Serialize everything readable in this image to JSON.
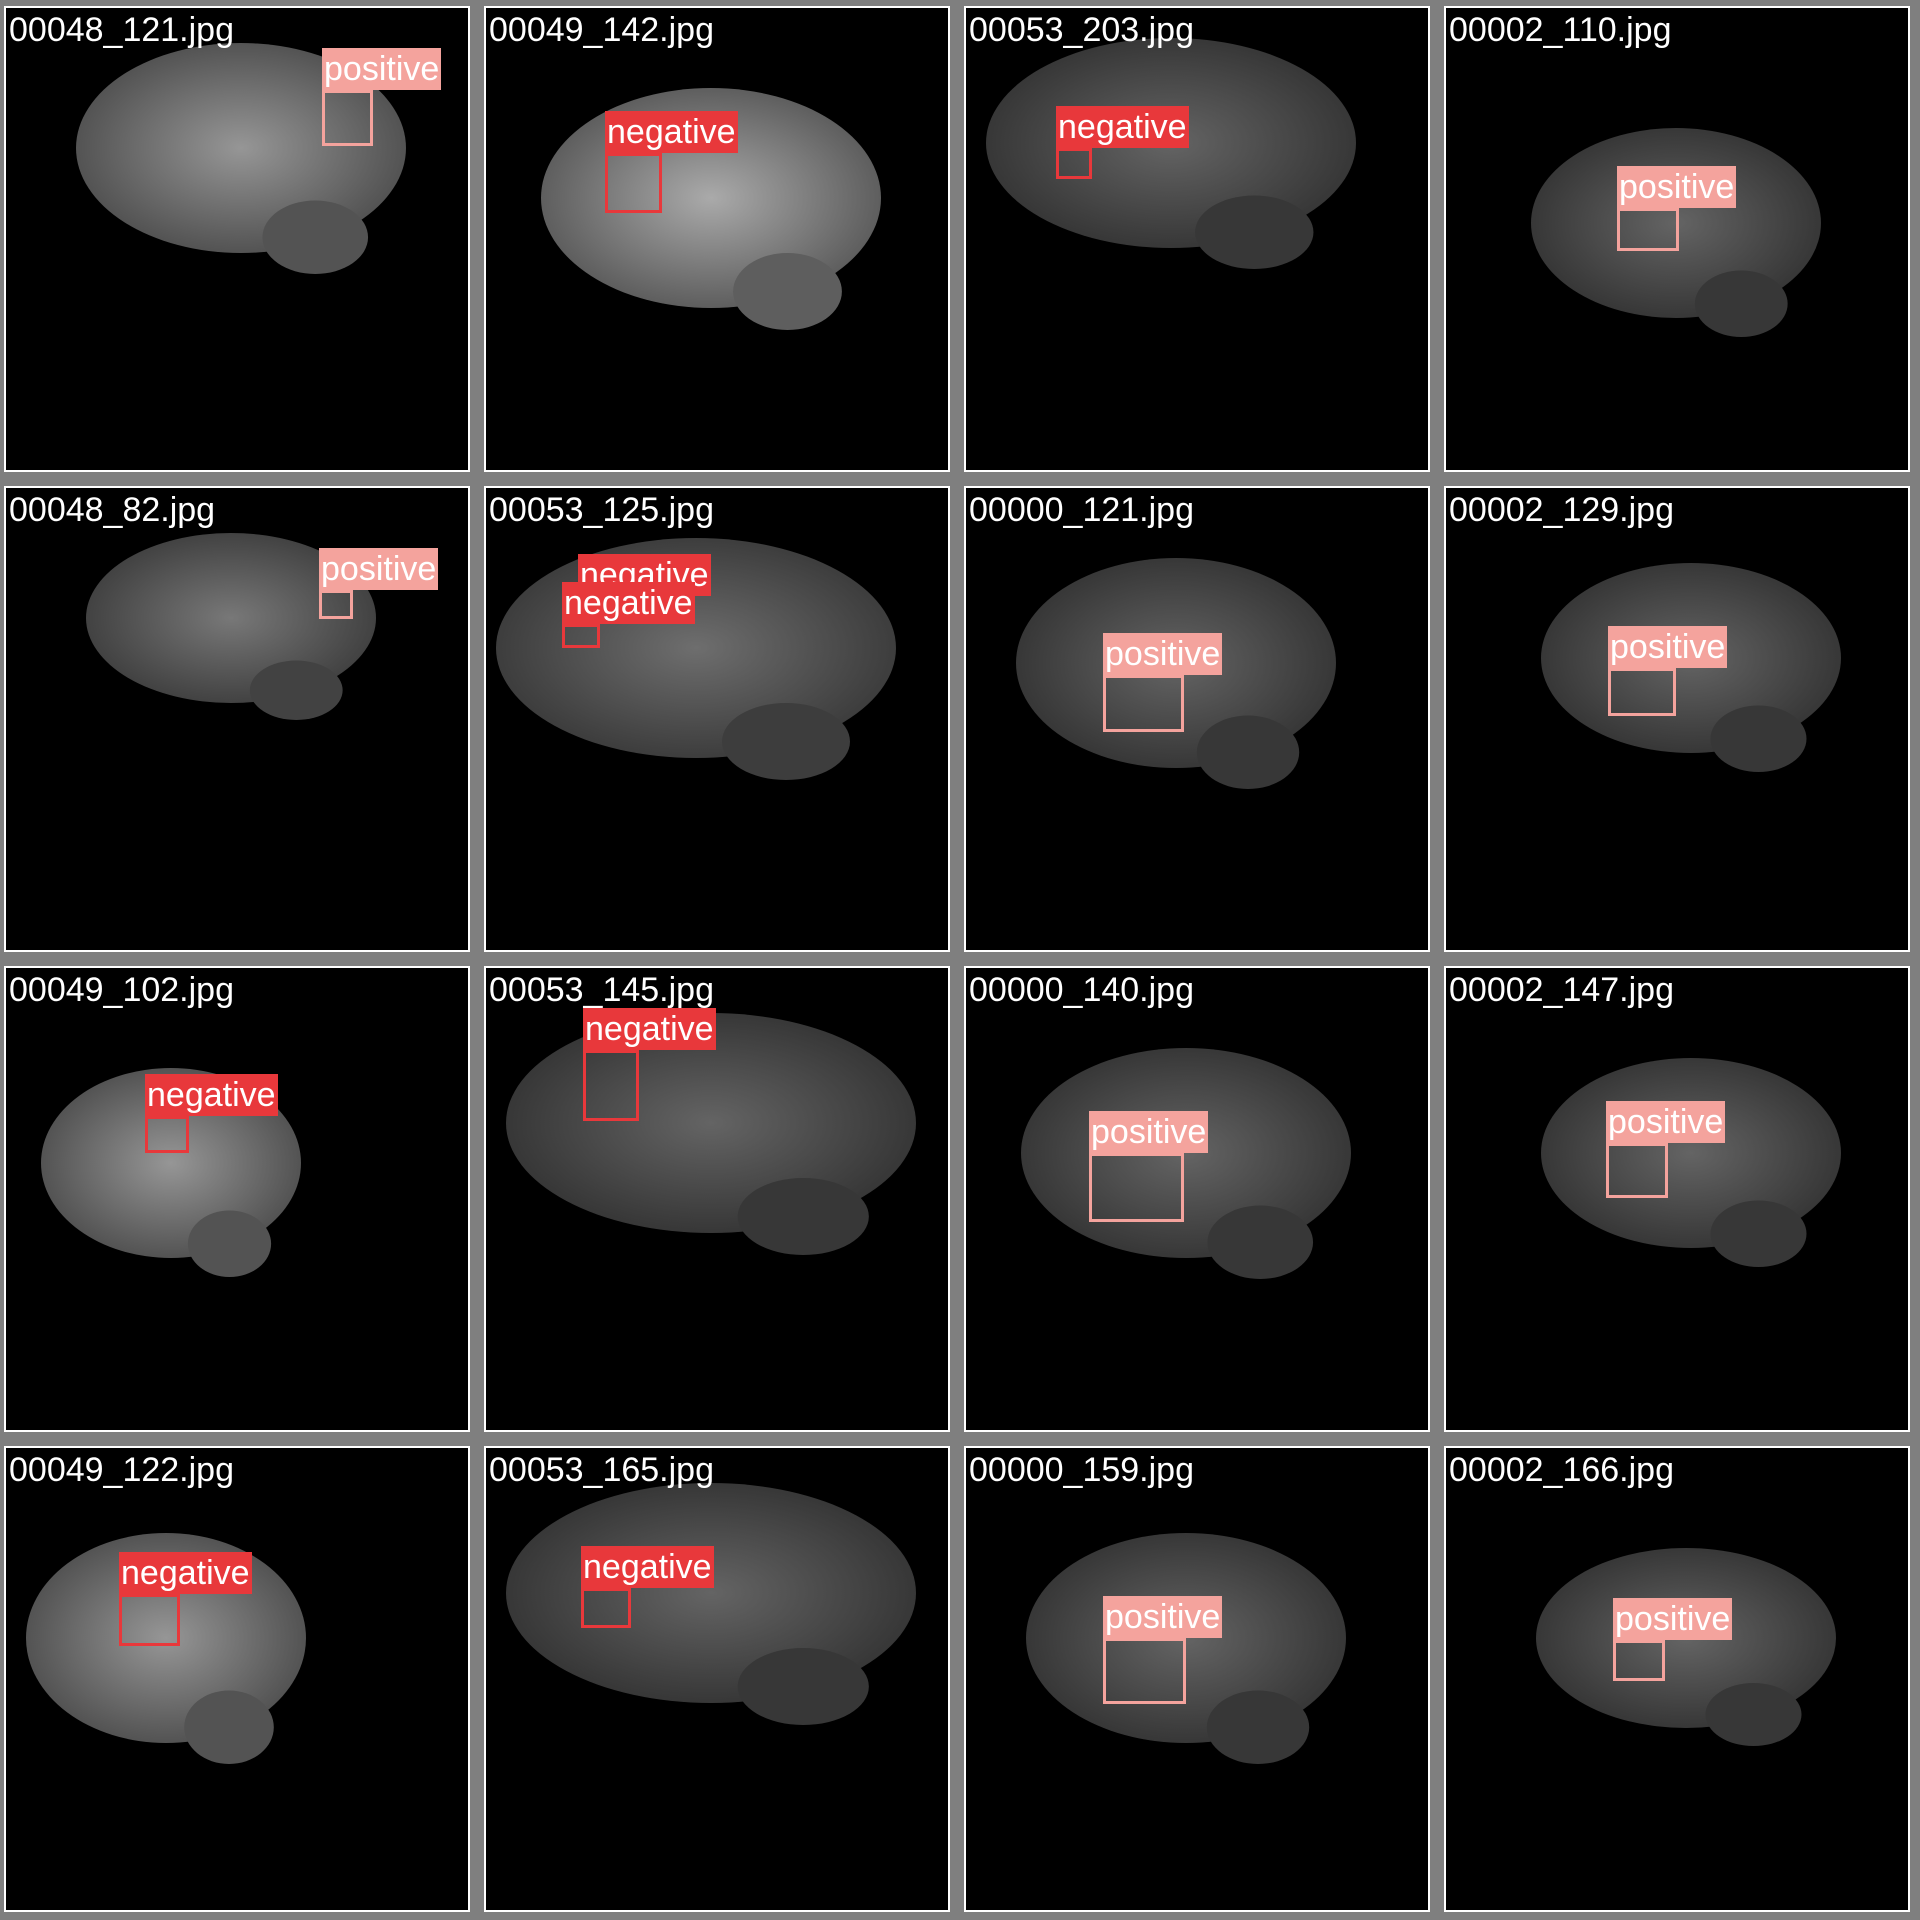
{
  "colors": {
    "positive": "#f4a39d",
    "negative": "#e8383b",
    "background": "#7f7f7f",
    "tile": "#000000"
  },
  "tiles": [
    {
      "filename": "00048_121.jpg",
      "detections": [
        {
          "label": "positive"
        }
      ]
    },
    {
      "filename": "00049_142.jpg",
      "detections": [
        {
          "label": "negative"
        }
      ]
    },
    {
      "filename": "00053_203.jpg",
      "detections": [
        {
          "label": "negative"
        }
      ]
    },
    {
      "filename": "00002_110.jpg",
      "detections": [
        {
          "label": "positive"
        }
      ]
    },
    {
      "filename": "00048_82.jpg",
      "detections": [
        {
          "label": "positive"
        }
      ]
    },
    {
      "filename": "00053_125.jpg",
      "detections": [
        {
          "label": "negative"
        },
        {
          "label": "negative"
        }
      ]
    },
    {
      "filename": "00000_121.jpg",
      "detections": [
        {
          "label": "positive"
        }
      ]
    },
    {
      "filename": "00002_129.jpg",
      "detections": [
        {
          "label": "positive"
        }
      ]
    },
    {
      "filename": "00049_102.jpg",
      "detections": [
        {
          "label": "negative"
        }
      ]
    },
    {
      "filename": "00053_145.jpg",
      "detections": [
        {
          "label": "negative"
        }
      ]
    },
    {
      "filename": "00000_140.jpg",
      "detections": [
        {
          "label": "positive"
        }
      ]
    },
    {
      "filename": "00002_147.jpg",
      "detections": [
        {
          "label": "positive"
        }
      ]
    },
    {
      "filename": "00049_122.jpg",
      "detections": [
        {
          "label": "negative"
        }
      ]
    },
    {
      "filename": "00053_165.jpg",
      "detections": [
        {
          "label": "negative"
        }
      ]
    },
    {
      "filename": "00000_159.jpg",
      "detections": [
        {
          "label": "positive"
        }
      ]
    },
    {
      "filename": "00002_166.jpg",
      "detections": [
        {
          "label": "positive"
        }
      ]
    }
  ]
}
